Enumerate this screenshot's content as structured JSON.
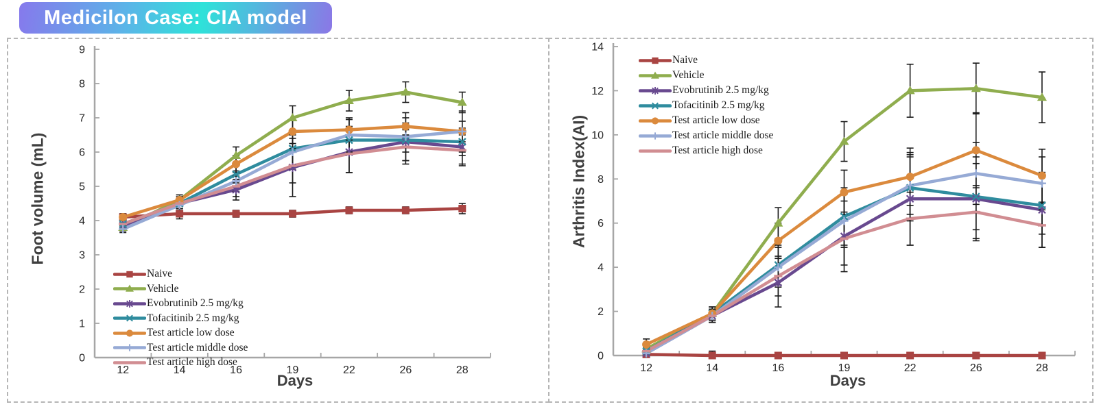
{
  "banner": {
    "text": "Medicilon Case: CIA model",
    "gradient": [
      "#8679EC",
      "#2EE2D9",
      "#8B77E6"
    ],
    "text_color": "#FFFFFF"
  },
  "style": {
    "axis_color": "#A6A6A6",
    "tick_label_color": "#262626",
    "error_bar_color": "#1A1A1A",
    "panel_border_color": "#B5B5B5"
  },
  "chart_data": [
    {
      "type": "line",
      "title": "",
      "ylabel": "Foot volume (mL)",
      "xlabel": "Days",
      "categories": [
        "12",
        "14",
        "16",
        "19",
        "22",
        "26",
        "28"
      ],
      "ylim": [
        0,
        9
      ],
      "ytick_step": 1,
      "grid": false,
      "legend_position": "inside-bottom-left",
      "error_bars": true,
      "series": [
        {
          "name": "Naive",
          "color": "#A94442",
          "marker": "square",
          "values": [
            4.1,
            4.2,
            4.2,
            4.2,
            4.3,
            4.3,
            4.35
          ],
          "err": [
            0.1,
            0.15,
            0.1,
            0.1,
            0.1,
            0.1,
            0.15
          ]
        },
        {
          "name": "Vehicle",
          "color": "#8FAD4E",
          "marker": "triangle",
          "values": [
            3.8,
            4.6,
            5.9,
            7.0,
            7.5,
            7.75,
            7.45
          ],
          "err": [
            0.1,
            0.15,
            0.25,
            0.35,
            0.3,
            0.3,
            0.3
          ]
        },
        {
          "name": "Evobrutinib 2.5 mg/kg",
          "color": "#68498F",
          "marker": "star",
          "values": [
            3.85,
            4.5,
            4.9,
            5.55,
            6.0,
            6.3,
            6.15
          ],
          "err": [
            0.1,
            0.15,
            0.3,
            0.85,
            0.6,
            0.55,
            0.5
          ]
        },
        {
          "name": "Tofacitinib 2.5 mg/kg",
          "color": "#2F8C9E",
          "marker": "x",
          "values": [
            3.9,
            4.5,
            5.35,
            6.1,
            6.35,
            6.35,
            6.3
          ],
          "err": [
            0.1,
            0.15,
            0.25,
            0.5,
            0.4,
            0.35,
            0.4
          ]
        },
        {
          "name": "Test article low dose",
          "color": "#DB8A3D",
          "marker": "circle",
          "values": [
            4.1,
            4.6,
            5.65,
            6.6,
            6.65,
            6.75,
            6.6
          ],
          "err": [
            0.1,
            0.1,
            0.25,
            0.35,
            0.3,
            0.25,
            0.3
          ]
        },
        {
          "name": "Test article middle dose",
          "color": "#96AAD5",
          "marker": "plus",
          "values": [
            3.75,
            4.45,
            5.15,
            6.0,
            6.5,
            6.45,
            6.6
          ],
          "err": [
            0.1,
            0.15,
            0.3,
            0.5,
            0.5,
            0.7,
            0.6
          ]
        },
        {
          "name": "Test article high dose",
          "color": "#D18D92",
          "marker": "dash",
          "values": [
            3.9,
            4.5,
            5.0,
            5.6,
            5.95,
            6.15,
            6.05
          ],
          "err": [
            0.1,
            0.15,
            0.3,
            0.5,
            0.55,
            0.5,
            0.45
          ]
        }
      ]
    },
    {
      "type": "line",
      "title": "",
      "ylabel": "Arthritis Index(AI)",
      "xlabel": "Days",
      "categories": [
        "12",
        "14",
        "16",
        "19",
        "22",
        "26",
        "28"
      ],
      "ylim": [
        0,
        14
      ],
      "ytick_step": 2,
      "grid": false,
      "legend_position": "inside-top-left",
      "error_bars": true,
      "series": [
        {
          "name": "Naive",
          "color": "#A94442",
          "marker": "square",
          "values": [
            0.05,
            0,
            0,
            0,
            0,
            0,
            0
          ],
          "err": [
            0.2,
            0.2,
            0,
            0,
            0,
            0,
            0
          ]
        },
        {
          "name": "Vehicle",
          "color": "#8FAD4E",
          "marker": "triangle",
          "values": [
            0.3,
            1.9,
            6.0,
            9.7,
            12.0,
            12.1,
            11.7
          ],
          "err": [
            0.2,
            0.3,
            0.7,
            0.9,
            1.2,
            1.15,
            1.15
          ]
        },
        {
          "name": "Evobrutinib 2.5 mg/kg",
          "color": "#68498F",
          "marker": "star",
          "values": [
            0.1,
            1.8,
            3.3,
            5.4,
            7.1,
            7.1,
            6.6
          ],
          "err": [
            0.15,
            0.3,
            1.1,
            1.6,
            2.1,
            1.9,
            1.7
          ]
        },
        {
          "name": "Tofacitinib 2.5 mg/kg",
          "color": "#2F8C9E",
          "marker": "x",
          "values": [
            0.2,
            1.9,
            4.1,
            6.3,
            7.6,
            7.2,
            6.8
          ],
          "err": [
            0.15,
            0.3,
            0.9,
            1.3,
            1.5,
            1.5,
            1.3
          ]
        },
        {
          "name": "Test article low dose",
          "color": "#DB8A3D",
          "marker": "circle",
          "values": [
            0.5,
            1.9,
            5.2,
            7.4,
            8.1,
            9.3,
            8.15
          ],
          "err": [
            0.25,
            0.3,
            0.8,
            1.0,
            1.3,
            1.7,
            1.2
          ]
        },
        {
          "name": "Test article middle dose",
          "color": "#96AAD5",
          "marker": "plus",
          "values": [
            0.1,
            1.8,
            4.0,
            6.1,
            7.7,
            8.25,
            7.8
          ],
          "err": [
            0.15,
            0.3,
            0.9,
            1.2,
            1.3,
            1.4,
            1.2
          ]
        },
        {
          "name": "Test article high dose",
          "color": "#D18D92",
          "marker": "dash",
          "values": [
            0.2,
            1.8,
            3.6,
            5.3,
            6.2,
            6.5,
            5.9
          ],
          "err": [
            0.2,
            0.3,
            0.9,
            1.2,
            1.2,
            1.2,
            1.0
          ]
        }
      ]
    }
  ]
}
